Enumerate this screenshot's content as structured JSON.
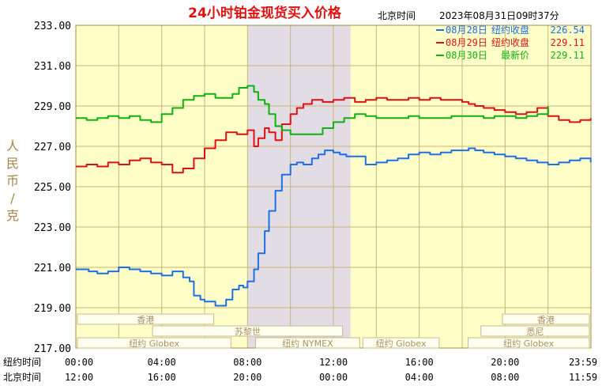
{
  "header": {
    "title": "24小时铂金现货买入价格",
    "timezone": "北京时间",
    "datetime": "2023年08月31日09时37分"
  },
  "colors": {
    "background": "#ffffc8",
    "grid": "#c8b478",
    "session_shade": "#e2dde4",
    "title": "#e01010",
    "axis_text": "#000000",
    "y_unit": "#a08848",
    "box_text": "#a89060",
    "box_stroke": "#c8b890"
  },
  "chart_data": {
    "type": "line",
    "ylabel": "人民币/克",
    "ylim": [
      217.0,
      233.0
    ],
    "yticks": [
      "233.00",
      "231.00",
      "229.00",
      "227.00",
      "225.00",
      "223.00",
      "221.00",
      "219.00",
      "217.00"
    ],
    "x_row_labels": [
      "纽约时间",
      "北京时间"
    ],
    "xticks_ny": [
      "00:00",
      "04:00",
      "08:00",
      "12:00",
      "16:00",
      "20:00",
      "23:59"
    ],
    "xticks_bj": [
      "12:00",
      "16:00",
      "20:00",
      "00:00",
      "04:00",
      "08:00",
      "11:59"
    ],
    "x_hours_ny": [
      0,
      4,
      8,
      12,
      16,
      20,
      24
    ],
    "shade_hours_ny": [
      8,
      12.8
    ],
    "series": [
      {
        "name": "08月28日",
        "legend_text": "纽约收盘",
        "legend_value": "226.54",
        "color": "#1e6ee6",
        "x": [
          0,
          0.3,
          0.6,
          1,
          1.5,
          2,
          2.5,
          3,
          3.5,
          4,
          4.5,
          5,
          5.3,
          5.5,
          5.8,
          6,
          6.5,
          7,
          7.3,
          7.6,
          7.8,
          8,
          8.3,
          8.5,
          8.8,
          9,
          9.3,
          9.6,
          10,
          10.3,
          10.6,
          11,
          11.3,
          11.6,
          12,
          12.3,
          12.6,
          13,
          13.5,
          14,
          14.5,
          15,
          15.5,
          16,
          16.5,
          17,
          17.5,
          18,
          18.3,
          18.6,
          19,
          19.5,
          20,
          20.5,
          21,
          21.5,
          22,
          22.5,
          23,
          23.5,
          23.99
        ],
        "y": [
          220.9,
          220.9,
          220.8,
          220.7,
          220.8,
          221.0,
          220.9,
          220.8,
          220.7,
          220.6,
          220.8,
          220.5,
          220.3,
          219.6,
          219.4,
          219.3,
          219.1,
          219.4,
          219.9,
          220.1,
          220.0,
          220.3,
          220.9,
          221.7,
          222.8,
          223.8,
          224.8,
          225.6,
          226.1,
          226.2,
          226.1,
          226.4,
          226.6,
          226.8,
          226.7,
          226.6,
          226.5,
          226.5,
          226.1,
          226.2,
          226.3,
          226.4,
          226.6,
          226.7,
          226.6,
          226.7,
          226.8,
          226.8,
          226.9,
          226.8,
          226.7,
          226.6,
          226.5,
          226.4,
          226.3,
          226.2,
          226.1,
          226.2,
          226.3,
          226.4,
          226.2
        ]
      },
      {
        "name": "08月29日",
        "legend_text": "纽约收盘",
        "legend_value": "229.11",
        "color": "#e01010",
        "x": [
          0,
          0.5,
          1,
          1.5,
          2,
          2.5,
          3,
          3.5,
          4,
          4.5,
          5,
          5.5,
          6,
          6.5,
          7,
          7.5,
          8,
          8.3,
          8.5,
          8.8,
          9,
          9.3,
          9.6,
          10,
          10.3,
          10.6,
          11,
          11.5,
          12,
          12.5,
          13,
          13.5,
          14,
          14.5,
          15,
          15.5,
          16,
          16.5,
          17,
          17.5,
          18,
          18.3,
          18.6,
          19,
          19.5,
          20,
          20.5,
          21,
          21.5,
          22,
          22.5,
          23,
          23.5,
          23.99
        ],
        "y": [
          226.0,
          226.1,
          226.0,
          226.2,
          226.1,
          226.3,
          226.4,
          226.2,
          226.1,
          225.7,
          225.9,
          226.4,
          226.9,
          227.3,
          227.7,
          227.6,
          227.8,
          227.0,
          227.4,
          227.9,
          227.7,
          227.3,
          228.1,
          228.6,
          228.9,
          229.1,
          229.3,
          229.2,
          229.3,
          229.4,
          229.2,
          229.3,
          229.4,
          229.3,
          229.3,
          229.4,
          229.3,
          229.4,
          229.3,
          229.3,
          229.2,
          229.1,
          229.0,
          228.9,
          228.8,
          228.7,
          228.6,
          228.7,
          228.9,
          228.5,
          228.3,
          228.2,
          228.3,
          228.4
        ]
      },
      {
        "name": "08月30日",
        "legend_text": "最新价",
        "legend_value": "229.11",
        "color": "#10b010",
        "x": [
          0,
          0.5,
          1,
          1.5,
          2,
          2.5,
          3,
          3.5,
          4,
          4.5,
          5,
          5.5,
          6,
          6.5,
          7,
          7.3,
          7.6,
          8,
          8.3,
          8.5,
          8.8,
          9,
          9.3,
          9.6,
          10,
          10.5,
          11,
          11.5,
          12,
          12.5,
          13,
          13.5,
          14,
          14.5,
          15,
          15.5,
          16,
          16.5,
          17,
          17.5,
          18,
          18.5,
          19,
          19.5,
          20,
          20.5,
          21,
          21.5,
          22
        ],
        "y": [
          228.4,
          228.3,
          228.4,
          228.5,
          228.4,
          228.5,
          228.3,
          228.2,
          228.6,
          228.9,
          229.3,
          229.5,
          229.6,
          229.4,
          229.4,
          229.6,
          229.9,
          230.0,
          229.7,
          229.3,
          229.1,
          228.6,
          228.0,
          227.8,
          227.6,
          227.6,
          227.6,
          227.9,
          228.2,
          228.4,
          228.6,
          228.5,
          228.4,
          228.4,
          228.4,
          228.5,
          228.4,
          228.4,
          228.4,
          228.5,
          228.5,
          228.5,
          228.4,
          228.5,
          228.5,
          228.4,
          228.5,
          228.6,
          229.0
        ]
      }
    ],
    "sessions": [
      {
        "name": "香港",
        "start": 0,
        "end": 6.5
      },
      {
        "name": "苏黎世",
        "start": 3.5,
        "end": 12.5
      },
      {
        "name": "纽约 Globex",
        "start": 0,
        "end": 7.3
      },
      {
        "name": "纽约 NYMEX",
        "start": 8.3,
        "end": 13.3
      },
      {
        "name": "纽约 Globex",
        "start": 13.3,
        "end": 17.0
      },
      {
        "name": "香港",
        "start": 19.8,
        "end": 24
      },
      {
        "name": "悉尼",
        "start": 18.8,
        "end": 24
      },
      {
        "name": "纽约 Globex",
        "start": 18.2,
        "end": 24
      }
    ]
  }
}
